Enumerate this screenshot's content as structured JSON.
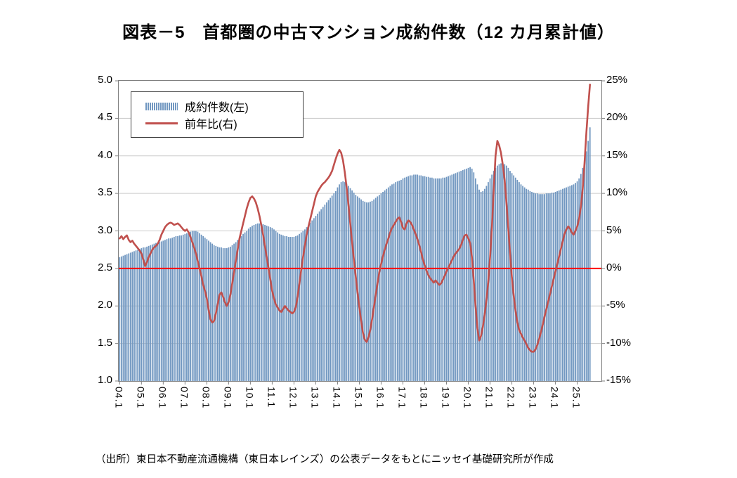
{
  "page": {
    "title": "図表－5　首都圏の中古マンション成約件数（12 カ月累計値）"
  },
  "legend": {
    "bars_label": "成約件数(左)",
    "line_label": "前年比(右)"
  },
  "source_note": "（出所）東日本不動産流通機構（東日本レインズ）の公表データをもとにニッセイ基礎研究所が作成",
  "chart_data": {
    "type": "combo",
    "title": "図表－5　首都圏の中古マンション成約件数（12 カ月累計値）",
    "x_unit": "monthly, YY.M format, from 04.1 (Jan 2004) to 25.8",
    "x_tick_labels": [
      "04.1",
      "05.1",
      "06.1",
      "07.1",
      "08.1",
      "09.1",
      "10.1",
      "11.1",
      "12.1",
      "13.1",
      "14.1",
      "15.1",
      "16.1",
      "17.1",
      "18.1",
      "19.1",
      "20.1",
      "21.1",
      "22.1",
      "23.1",
      "24.1",
      "25.1"
    ],
    "x_tick_interval_months": 12,
    "left_axis": {
      "min": 1.0,
      "max": 5.0,
      "ticks": [
        "5.0",
        "4.5",
        "4.0",
        "3.5",
        "3.0",
        "2.5",
        "2.0",
        "1.5",
        "1.0"
      ],
      "series_unit": "万件 (10k transactions, 12-month cumulative)"
    },
    "right_axis": {
      "min": -15,
      "max": 25,
      "ticks": [
        "25%",
        "20%",
        "15%",
        "10%",
        "5%",
        "0%",
        "-5%",
        "-10%",
        "-15%"
      ],
      "series_unit": "year-on-year %"
    },
    "grid": "horizontal",
    "legend_position": "top-left-inside",
    "zero_line": {
      "axis": "right",
      "value": 0
    },
    "colors": {
      "bar": "#7298C1",
      "line": "#C0504D",
      "zero_line": "#FF0000",
      "grid": "#C9C9C9",
      "plot_border": "#808080",
      "tick": "#808080"
    },
    "series": [
      {
        "name": "成約件数(左)",
        "type": "bar",
        "axis": "left",
        "values": [
          2.65,
          2.66,
          2.67,
          2.68,
          2.69,
          2.7,
          2.71,
          2.72,
          2.73,
          2.74,
          2.75,
          2.76,
          2.77,
          2.78,
          2.78,
          2.79,
          2.8,
          2.81,
          2.82,
          2.83,
          2.84,
          2.84,
          2.85,
          2.86,
          2.87,
          2.88,
          2.89,
          2.9,
          2.9,
          2.91,
          2.92,
          2.93,
          2.93,
          2.94,
          2.94,
          2.95,
          2.96,
          2.97,
          2.98,
          2.99,
          3.0,
          3.0,
          3.0,
          2.99,
          2.97,
          2.95,
          2.93,
          2.91,
          2.89,
          2.87,
          2.85,
          2.83,
          2.81,
          2.8,
          2.79,
          2.78,
          2.78,
          2.77,
          2.77,
          2.77,
          2.78,
          2.79,
          2.81,
          2.83,
          2.85,
          2.88,
          2.9,
          2.93,
          2.96,
          2.98,
          3.0,
          3.03,
          3.05,
          3.07,
          3.08,
          3.09,
          3.1,
          3.1,
          3.1,
          3.09,
          3.08,
          3.07,
          3.06,
          3.05,
          3.04,
          3.02,
          3.0,
          2.98,
          2.96,
          2.95,
          2.94,
          2.93,
          2.93,
          2.92,
          2.92,
          2.92,
          2.92,
          2.93,
          2.94,
          2.96,
          2.98,
          3.0,
          3.02,
          3.05,
          3.08,
          3.11,
          3.14,
          3.17,
          3.2,
          3.23,
          3.26,
          3.29,
          3.32,
          3.35,
          3.38,
          3.41,
          3.44,
          3.47,
          3.5,
          3.53,
          3.58,
          3.62,
          3.65,
          3.66,
          3.65,
          3.63,
          3.6,
          3.57,
          3.54,
          3.51,
          3.48,
          3.46,
          3.44,
          3.42,
          3.4,
          3.39,
          3.38,
          3.38,
          3.39,
          3.4,
          3.42,
          3.44,
          3.46,
          3.48,
          3.5,
          3.52,
          3.54,
          3.56,
          3.58,
          3.6,
          3.62,
          3.63,
          3.65,
          3.66,
          3.67,
          3.68,
          3.7,
          3.71,
          3.72,
          3.73,
          3.74,
          3.74,
          3.75,
          3.75,
          3.75,
          3.74,
          3.74,
          3.73,
          3.73,
          3.72,
          3.72,
          3.71,
          3.71,
          3.7,
          3.7,
          3.7,
          3.7,
          3.7,
          3.71,
          3.71,
          3.72,
          3.73,
          3.74,
          3.75,
          3.76,
          3.77,
          3.78,
          3.79,
          3.8,
          3.81,
          3.82,
          3.83,
          3.84,
          3.85,
          3.83,
          3.78,
          3.7,
          3.62,
          3.55,
          3.52,
          3.53,
          3.56,
          3.6,
          3.65,
          3.7,
          3.75,
          3.8,
          3.84,
          3.87,
          3.89,
          3.9,
          3.9,
          3.89,
          3.87,
          3.84,
          3.8,
          3.77,
          3.74,
          3.71,
          3.68,
          3.65,
          3.62,
          3.6,
          3.58,
          3.56,
          3.55,
          3.53,
          3.52,
          3.51,
          3.5,
          3.5,
          3.49,
          3.49,
          3.49,
          3.49,
          3.5,
          3.5,
          3.5,
          3.51,
          3.51,
          3.52,
          3.53,
          3.54,
          3.55,
          3.56,
          3.57,
          3.58,
          3.59,
          3.6,
          3.61,
          3.62,
          3.64,
          3.66,
          3.7,
          3.76,
          3.84,
          3.94,
          4.06,
          4.2,
          4.38
        ]
      },
      {
        "name": "前年比(右)",
        "type": "line",
        "axis": "right",
        "values": [
          4.0,
          4.3,
          3.9,
          4.2,
          4.4,
          3.8,
          3.5,
          3.7,
          3.3,
          3.0,
          2.7,
          2.4,
          2.0,
          1.2,
          0.3,
          0.8,
          1.5,
          2.0,
          2.5,
          2.8,
          3.0,
          3.3,
          3.8,
          4.5,
          5.0,
          5.5,
          5.8,
          6.0,
          6.1,
          6.0,
          5.8,
          5.9,
          6.0,
          5.8,
          5.5,
          5.2,
          5.0,
          5.2,
          4.8,
          4.2,
          3.5,
          2.8,
          2.0,
          1.0,
          0.0,
          -1.0,
          -2.2,
          -3.0,
          -4.0,
          -5.5,
          -6.8,
          -7.2,
          -7.0,
          -6.0,
          -4.8,
          -3.5,
          -3.2,
          -3.8,
          -4.5,
          -5.0,
          -4.5,
          -3.5,
          -2.0,
          -0.5,
          1.0,
          2.5,
          4.0,
          5.0,
          6.0,
          7.0,
          8.0,
          8.8,
          9.4,
          9.6,
          9.3,
          8.8,
          8.0,
          7.0,
          5.8,
          4.5,
          3.0,
          1.5,
          0.0,
          -1.5,
          -3.0,
          -4.0,
          -4.8,
          -5.2,
          -5.6,
          -5.8,
          -5.4,
          -5.0,
          -5.3,
          -5.6,
          -5.8,
          -6.0,
          -5.8,
          -5.2,
          -3.8,
          -2.0,
          -0.2,
          1.5,
          3.0,
          4.5,
          5.6,
          6.6,
          7.6,
          8.6,
          9.6,
          10.2,
          10.6,
          11.0,
          11.3,
          11.5,
          11.8,
          12.1,
          12.5,
          13.0,
          13.8,
          14.6,
          15.3,
          15.8,
          15.4,
          14.4,
          12.8,
          10.8,
          8.5,
          6.0,
          3.5,
          1.2,
          -1.0,
          -3.2,
          -5.2,
          -7.0,
          -8.6,
          -9.5,
          -9.8,
          -9.2,
          -8.2,
          -6.8,
          -5.2,
          -3.6,
          -2.0,
          -0.5,
          0.6,
          1.6,
          2.5,
          3.3,
          4.0,
          4.8,
          5.4,
          5.8,
          6.2,
          6.6,
          6.8,
          6.2,
          5.4,
          5.2,
          6.0,
          6.4,
          6.2,
          5.8,
          5.2,
          4.6,
          3.9,
          3.1,
          2.2,
          1.2,
          0.4,
          -0.3,
          -0.9,
          -1.3,
          -1.6,
          -1.9,
          -1.6,
          -1.9,
          -2.2,
          -2.0,
          -1.5,
          -1.0,
          -0.4,
          0.1,
          0.6,
          1.1,
          1.6,
          2.0,
          2.3,
          2.6,
          3.1,
          3.8,
          4.4,
          4.5,
          4.0,
          3.4,
          1.5,
          -1.6,
          -5.0,
          -8.0,
          -9.6,
          -9.0,
          -7.8,
          -6.2,
          -4.2,
          -1.8,
          1.5,
          5.5,
          10.5,
          15.0,
          17.0,
          16.4,
          15.4,
          13.8,
          11.8,
          8.8,
          5.4,
          2.0,
          -1.2,
          -3.6,
          -5.6,
          -7.2,
          -8.2,
          -8.7,
          -9.2,
          -9.6,
          -10.1,
          -10.6,
          -10.9,
          -11.1,
          -11.1,
          -10.8,
          -10.2,
          -9.4,
          -8.5,
          -7.5,
          -6.4,
          -5.4,
          -4.4,
          -3.4,
          -2.4,
          -1.4,
          -0.4,
          0.6,
          1.6,
          2.6,
          3.6,
          4.6,
          5.2,
          5.6,
          5.3,
          4.8,
          4.5,
          5.0,
          5.6,
          6.6,
          8.2,
          10.6,
          14.0,
          18.0,
          21.5,
          24.5
        ]
      }
    ]
  }
}
